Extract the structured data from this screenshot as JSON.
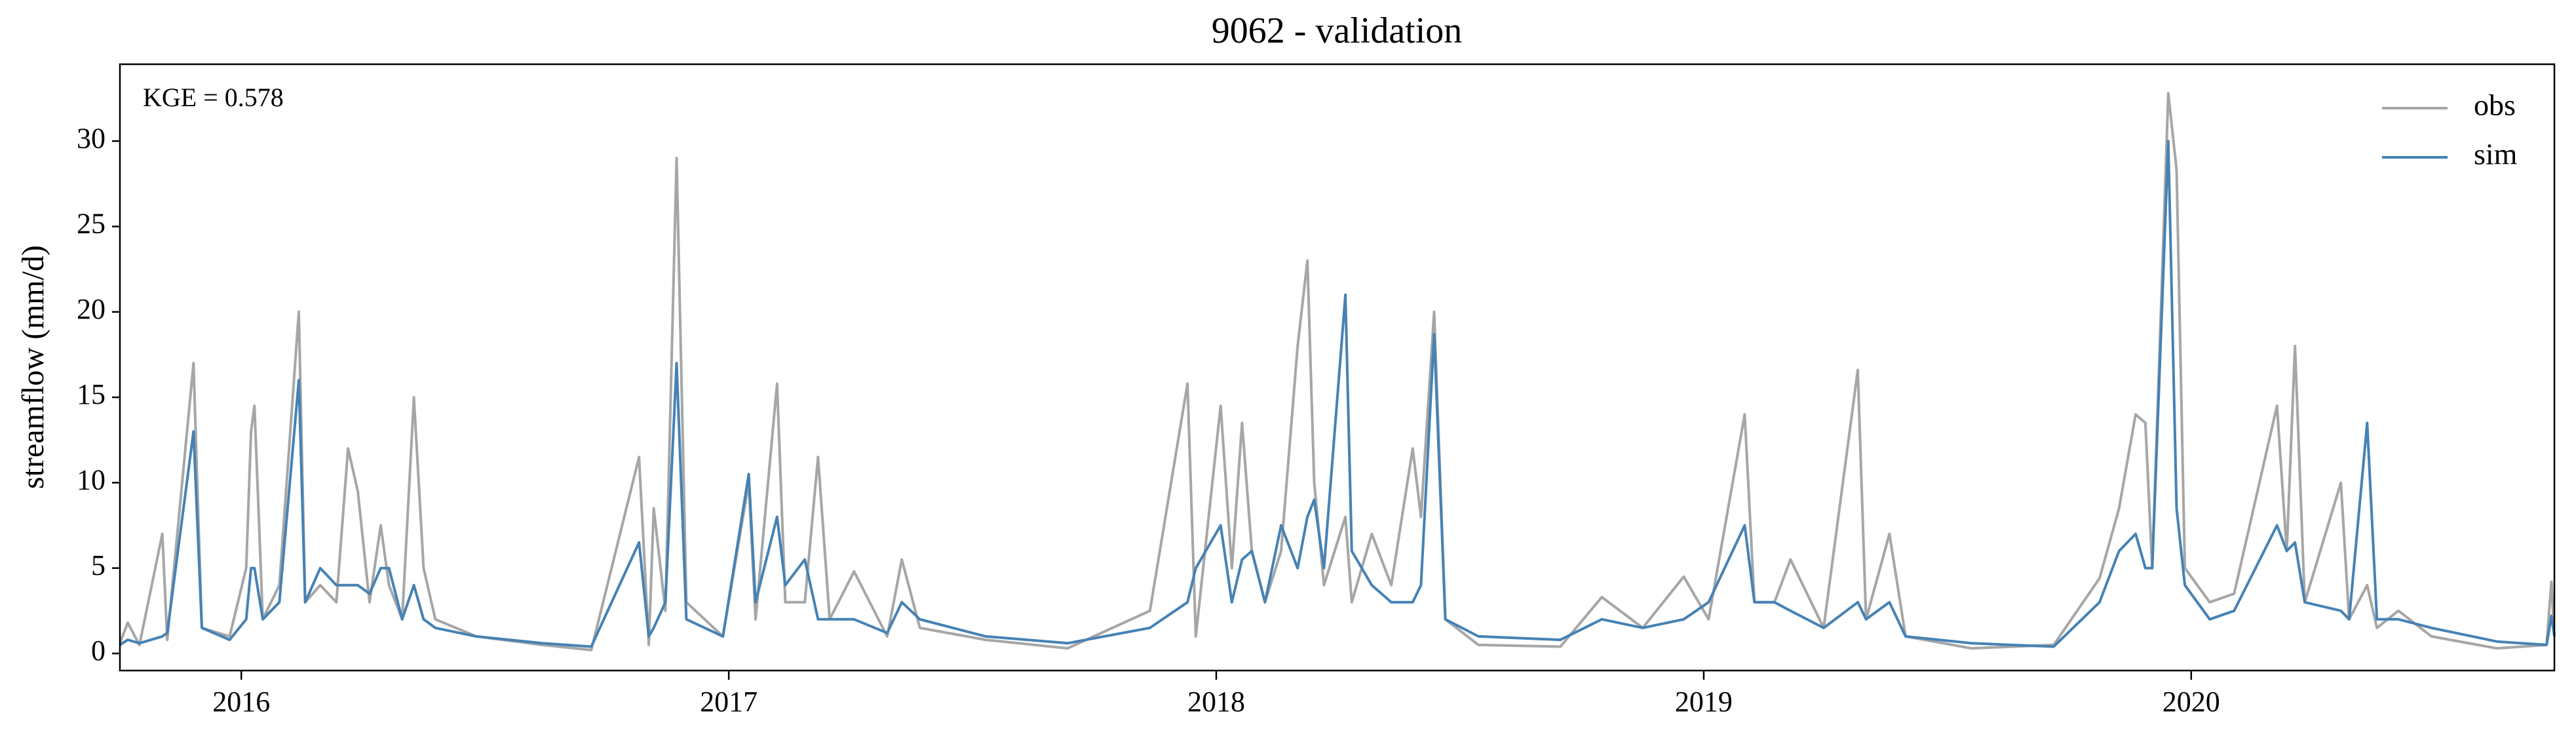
{
  "chart_data": {
    "type": "line",
    "title": "9062 - validation",
    "ylabel": "streamflow (mm/d)",
    "annotation": "KGE = 0.578",
    "legend": "upper right",
    "x": [
      2015.751,
      2015.767,
      2015.791,
      2015.838,
      2015.848,
      2015.902,
      2015.919,
      2015.976,
      2016.01,
      2016.02,
      2016.027,
      2016.044,
      2016.078,
      2016.118,
      2016.131,
      2016.162,
      2016.195,
      2016.219,
      2016.239,
      2016.263,
      2016.286,
      2016.303,
      2016.33,
      2016.354,
      2016.374,
      2016.398,
      2016.482,
      2016.617,
      2016.718,
      2016.816,
      2016.836,
      2016.846,
      2016.87,
      2016.893,
      2016.913,
      2016.988,
      2017.041,
      2017.055,
      2017.099,
      2017.116,
      2017.156,
      2017.183,
      2017.207,
      2017.257,
      2017.325,
      2017.355,
      2017.392,
      2017.527,
      2017.695,
      2017.864,
      2017.941,
      2017.958,
      2018.009,
      2018.032,
      2018.053,
      2018.073,
      2018.1,
      2018.133,
      2018.167,
      2018.187,
      2018.201,
      2018.221,
      2018.265,
      2018.278,
      2018.319,
      2018.359,
      2018.403,
      2018.42,
      2018.447,
      2018.47,
      2018.538,
      2018.706,
      2018.791,
      2018.875,
      2018.959,
      2019.01,
      2019.084,
      2019.104,
      2019.145,
      2019.178,
      2019.246,
      2019.316,
      2019.333,
      2019.381,
      2019.414,
      2019.549,
      2019.718,
      2019.812,
      2019.852,
      2019.886,
      2019.906,
      2019.92,
      2019.953,
      2019.97,
      2019.987,
      2020.038,
      2020.088,
      2020.176,
      2020.196,
      2020.213,
      2020.233,
      2020.307,
      2020.324,
      2020.361,
      2020.381,
      2020.425,
      2020.493,
      2020.627,
      2020.729,
      2020.739,
      2020.745
    ],
    "series": [
      {
        "name": "obs",
        "color": "#a6a6a6",
        "values": [
          0.6,
          1.8,
          0.5,
          7,
          0.8,
          17,
          1.5,
          1,
          5,
          13,
          14.5,
          2,
          4,
          20,
          3,
          4,
          3,
          12,
          9.5,
          3,
          7.5,
          4,
          2,
          15,
          5,
          2,
          1,
          0.5,
          0.2,
          11.5,
          0.5,
          8.5,
          2.5,
          29,
          3,
          1,
          10,
          2,
          15.8,
          3,
          3,
          11.5,
          2,
          4.8,
          1,
          5.5,
          1.5,
          0.8,
          0.3,
          2.5,
          15.8,
          1,
          14.5,
          5,
          13.5,
          6,
          3,
          6,
          18,
          23,
          10,
          4,
          8,
          3,
          7,
          4,
          12,
          8,
          20,
          2,
          0.5,
          0.4,
          3.3,
          1.5,
          4.5,
          2,
          14,
          3,
          3,
          5.5,
          1.5,
          16.6,
          2,
          7,
          1,
          0.3,
          0.5,
          4.4,
          8.5,
          14,
          13.5,
          5,
          32.8,
          28.3,
          5,
          3,
          3.5,
          14.5,
          6,
          18,
          3,
          10,
          2,
          4,
          1.5,
          2.5,
          1,
          0.3,
          0.5,
          4.2,
          1
        ]
      },
      {
        "name": "sim",
        "color": "#4682b4",
        "values": [
          0.5,
          0.8,
          0.6,
          1,
          1.2,
          13,
          1.5,
          0.8,
          2,
          5,
          5,
          2,
          3,
          16,
          3,
          5,
          4,
          4,
          4,
          3.5,
          5,
          5,
          2,
          4,
          2,
          1.5,
          1,
          0.6,
          0.4,
          6.5,
          1,
          1.5,
          3,
          17,
          2,
          1,
          10.5,
          3,
          8,
          4,
          5.5,
          2,
          2,
          2,
          1.2,
          3,
          2,
          1,
          0.6,
          1.5,
          3,
          5,
          7.5,
          3,
          5.5,
          6,
          3,
          7.5,
          5,
          8,
          9,
          5,
          21,
          6,
          4,
          3,
          3,
          4,
          18.7,
          2,
          1,
          0.8,
          2,
          1.5,
          2,
          3,
          7.5,
          3,
          3,
          2.5,
          1.5,
          3,
          2,
          3,
          1,
          0.6,
          0.4,
          3,
          6,
          7,
          5,
          5,
          30,
          8.5,
          4,
          2,
          2.5,
          7.5,
          6,
          6.5,
          3,
          2.5,
          2,
          13.5,
          2,
          2,
          1.5,
          0.7,
          0.5,
          2.2,
          1
        ]
      }
    ],
    "xlim": [
      2015.751,
      2020.745
    ],
    "xticks": [
      2016,
      2017,
      2018,
      2019,
      2020
    ],
    "ylim": [
      -1,
      34.5
    ],
    "yticks": [
      0,
      5,
      10,
      15,
      20,
      25,
      30
    ]
  }
}
